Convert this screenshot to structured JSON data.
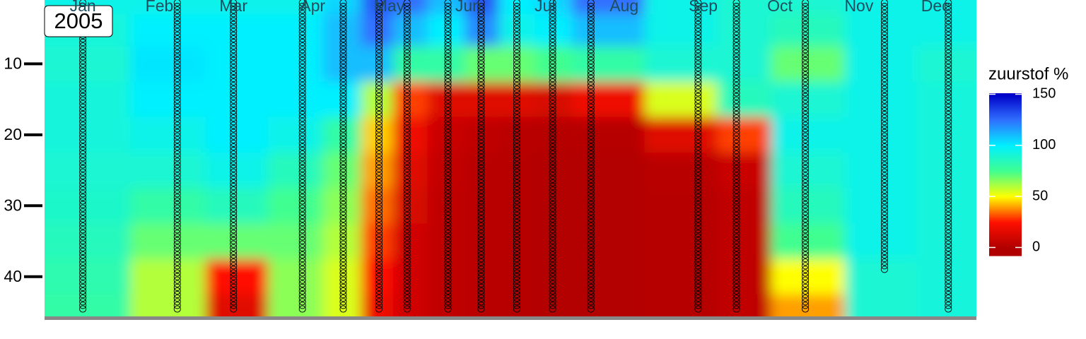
{
  "chart_data": {
    "type": "heatmap",
    "annotation": "2005",
    "legend_title": "zuurstof %",
    "xlim": [
      0,
      365
    ],
    "xticks": [
      {
        "value": 15,
        "label": "Jan"
      },
      {
        "value": 45,
        "label": "Feb"
      },
      {
        "value": 74,
        "label": "Mar"
      },
      {
        "value": 105,
        "label": "Apr"
      },
      {
        "value": 135,
        "label": "May"
      },
      {
        "value": 166,
        "label": "Jun"
      },
      {
        "value": 196,
        "label": "Jul"
      },
      {
        "value": 227,
        "label": "Aug"
      },
      {
        "value": 258,
        "label": "Sep"
      },
      {
        "value": 288,
        "label": "Oct"
      },
      {
        "value": 319,
        "label": "Nov"
      },
      {
        "value": 349,
        "label": "Dec"
      }
    ],
    "ylim": [
      46,
      1
    ],
    "yticks": [
      10,
      20,
      30,
      40
    ],
    "clim": [
      -8,
      151
    ],
    "cticks": [
      0,
      50,
      100,
      150
    ],
    "colorscale": [
      [
        0,
        "#b00000"
      ],
      [
        25,
        "#ff1000"
      ],
      [
        50,
        "#ffff00"
      ],
      [
        75,
        "#40ff90"
      ],
      [
        100,
        "#00f0ff"
      ],
      [
        125,
        "#3070ff"
      ],
      [
        150,
        "#0000c8"
      ]
    ],
    "x": [
      15,
      52,
      74,
      101,
      117,
      131,
      142,
      158,
      171,
      185,
      199,
      214,
      256,
      271,
      298,
      329,
      354
    ],
    "sample_max_depth": [
      45,
      45,
      45,
      45,
      45,
      45,
      45,
      45,
      45,
      45,
      45,
      45,
      45,
      45,
      45,
      39,
      45
    ],
    "y": [
      1,
      5,
      10,
      15,
      20,
      25,
      30,
      35,
      40,
      45
    ],
    "z": [
      [
        95,
        92,
        90,
        92,
        92,
        90,
        88,
        85,
        82,
        80
      ],
      [
        95,
        100,
        102,
        100,
        95,
        90,
        80,
        70,
        60,
        60
      ],
      [
        95,
        100,
        100,
        100,
        100,
        95,
        85,
        70,
        25,
        15
      ],
      [
        95,
        100,
        100,
        100,
        95,
        85,
        75,
        70,
        65,
        65
      ],
      [
        105,
        110,
        110,
        100,
        80,
        70,
        65,
        60,
        55,
        55
      ],
      [
        130,
        125,
        110,
        60,
        45,
        40,
        35,
        30,
        25,
        20
      ],
      [
        125,
        110,
        80,
        30,
        20,
        15,
        12,
        10,
        10,
        10
      ],
      [
        110,
        100,
        80,
        15,
        8,
        6,
        5,
        5,
        5,
        5
      ],
      [
        130,
        120,
        70,
        15,
        5,
        3,
        3,
        3,
        3,
        3
      ],
      [
        100,
        95,
        70,
        15,
        3,
        2,
        2,
        2,
        2,
        2
      ],
      [
        105,
        100,
        75,
        12,
        2,
        1,
        1,
        1,
        1,
        1
      ],
      [
        125,
        110,
        80,
        20,
        2,
        1,
        1,
        1,
        1,
        1
      ],
      [
        95,
        95,
        90,
        55,
        15,
        3,
        2,
        2,
        2,
        2
      ],
      [
        90,
        90,
        90,
        85,
        30,
        8,
        5,
        5,
        5,
        5
      ],
      [
        90,
        85,
        70,
        90,
        95,
        90,
        85,
        75,
        50,
        40
      ],
      [
        95,
        95,
        95,
        95,
        95,
        95,
        95,
        95,
        90,
        90
      ],
      [
        95,
        95,
        90,
        92,
        92,
        92,
        92,
        92,
        92,
        92
      ]
    ]
  }
}
